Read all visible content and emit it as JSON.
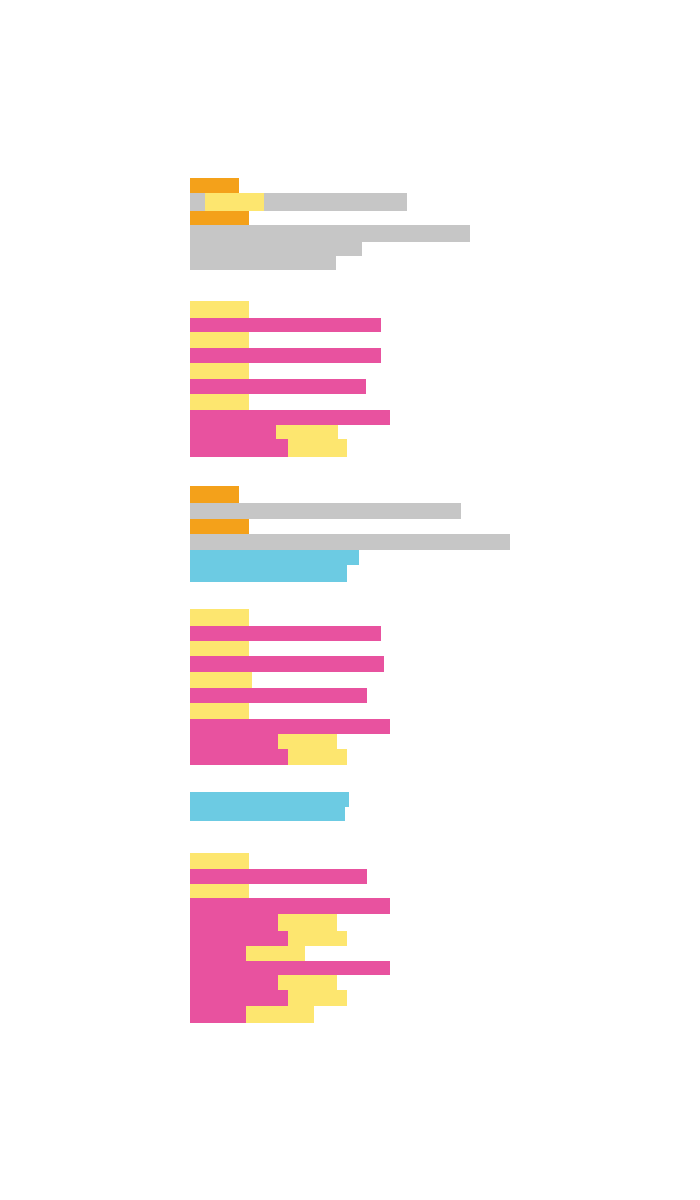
{
  "palette": {
    "gray": "#c6c6c6",
    "yellow": "#fde66f",
    "orange": "#f4a11a",
    "magenta": "#e8529f",
    "blue": "#6ccbe3"
  }
}
